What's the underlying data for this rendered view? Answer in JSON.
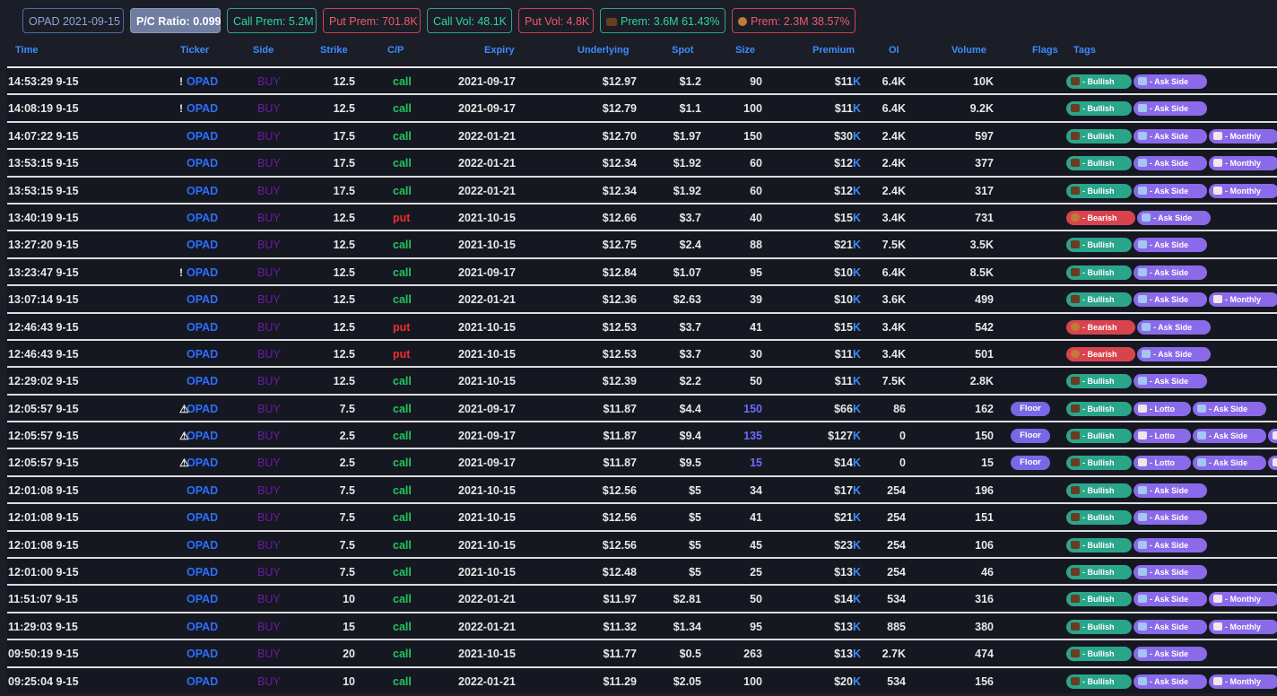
{
  "topbar": {
    "date_chip": "OPAD 2021-09-15",
    "pc_ratio": "P/C Ratio: 0.099",
    "call_prem": "Call Prem: 5.2M",
    "put_prem": "Put Prem: 701.8K",
    "call_vol": "Call Vol: 48.1K",
    "put_vol": "Put Vol: 4.8K",
    "bull_prem": "Prem: 3.6M 61.43%",
    "bear_prem": "Prem: 2.3M 38.57%",
    "colors": {
      "green": "#2ed6a1",
      "red": "#ef5969",
      "accent": "#3d8bff"
    }
  },
  "columns": [
    "Time",
    "Ticker",
    "Side",
    "Strike",
    "C/P",
    "Expiry",
    "Underlying",
    "Spot",
    "Size",
    "Premium",
    "OI",
    "Volume",
    "Flags",
    "Tags"
  ],
  "tag_labels": {
    "bullish": "- Bullish",
    "bearish": "- Bearish",
    "ask": "- Ask Side",
    "monthly": "- Monthly",
    "lotto": "- Lotto"
  },
  "rows": [
    {
      "time": "14:53:29 9-15",
      "marker": "!",
      "ticker": "OPAD",
      "side": "BUY",
      "strike": "12.5",
      "cp": "call",
      "expiry": "2021-09-17",
      "underlying": "$12.97",
      "spot": "$1.2",
      "size": "90",
      "premium": "$11",
      "unit": "K",
      "oi": "6.4K",
      "volume": "10K",
      "flag": "",
      "tags": [
        "bullish",
        "ask"
      ]
    },
    {
      "time": "14:08:19 9-15",
      "marker": "!",
      "ticker": "OPAD",
      "side": "BUY",
      "strike": "12.5",
      "cp": "call",
      "expiry": "2021-09-17",
      "underlying": "$12.79",
      "spot": "$1.1",
      "size": "100",
      "premium": "$11",
      "unit": "K",
      "oi": "6.4K",
      "volume": "9.2K",
      "flag": "",
      "tags": [
        "bullish",
        "ask"
      ]
    },
    {
      "time": "14:07:22 9-15",
      "marker": "",
      "ticker": "OPAD",
      "side": "BUY",
      "strike": "17.5",
      "cp": "call",
      "expiry": "2022-01-21",
      "underlying": "$12.70",
      "spot": "$1.97",
      "size": "150",
      "premium": "$30",
      "unit": "K",
      "oi": "2.4K",
      "volume": "597",
      "flag": "",
      "tags": [
        "bullish",
        "ask",
        "monthly"
      ]
    },
    {
      "time": "13:53:15 9-15",
      "marker": "",
      "ticker": "OPAD",
      "side": "BUY",
      "strike": "17.5",
      "cp": "call",
      "expiry": "2022-01-21",
      "underlying": "$12.34",
      "spot": "$1.92",
      "size": "60",
      "premium": "$12",
      "unit": "K",
      "oi": "2.4K",
      "volume": "377",
      "flag": "",
      "tags": [
        "bullish",
        "ask",
        "monthly"
      ]
    },
    {
      "time": "13:53:15 9-15",
      "marker": "",
      "ticker": "OPAD",
      "side": "BUY",
      "strike": "17.5",
      "cp": "call",
      "expiry": "2022-01-21",
      "underlying": "$12.34",
      "spot": "$1.92",
      "size": "60",
      "premium": "$12",
      "unit": "K",
      "oi": "2.4K",
      "volume": "317",
      "flag": "",
      "tags": [
        "bullish",
        "ask",
        "monthly"
      ]
    },
    {
      "time": "13:40:19 9-15",
      "marker": "",
      "ticker": "OPAD",
      "side": "BUY",
      "strike": "12.5",
      "cp": "put",
      "expiry": "2021-10-15",
      "underlying": "$12.66",
      "spot": "$3.7",
      "size": "40",
      "premium": "$15",
      "unit": "K",
      "oi": "3.4K",
      "volume": "731",
      "flag": "",
      "tags": [
        "bearish",
        "ask"
      ]
    },
    {
      "time": "13:27:20 9-15",
      "marker": "",
      "ticker": "OPAD",
      "side": "BUY",
      "strike": "12.5",
      "cp": "call",
      "expiry": "2021-10-15",
      "underlying": "$12.75",
      "spot": "$2.4",
      "size": "88",
      "premium": "$21",
      "unit": "K",
      "oi": "7.5K",
      "volume": "3.5K",
      "flag": "",
      "tags": [
        "bullish",
        "ask"
      ]
    },
    {
      "time": "13:23:47 9-15",
      "marker": "!",
      "ticker": "OPAD",
      "side": "BUY",
      "strike": "12.5",
      "cp": "call",
      "expiry": "2021-09-17",
      "underlying": "$12.84",
      "spot": "$1.07",
      "size": "95",
      "premium": "$10",
      "unit": "K",
      "oi": "6.4K",
      "volume": "8.5K",
      "flag": "",
      "tags": [
        "bullish",
        "ask"
      ]
    },
    {
      "time": "13:07:14 9-15",
      "marker": "",
      "ticker": "OPAD",
      "side": "BUY",
      "strike": "12.5",
      "cp": "call",
      "expiry": "2022-01-21",
      "underlying": "$12.36",
      "spot": "$2.63",
      "size": "39",
      "premium": "$10",
      "unit": "K",
      "oi": "3.6K",
      "volume": "499",
      "flag": "",
      "tags": [
        "bullish",
        "ask",
        "monthly"
      ]
    },
    {
      "time": "12:46:43 9-15",
      "marker": "",
      "ticker": "OPAD",
      "side": "BUY",
      "strike": "12.5",
      "cp": "put",
      "expiry": "2021-10-15",
      "underlying": "$12.53",
      "spot": "$3.7",
      "size": "41",
      "premium": "$15",
      "unit": "K",
      "oi": "3.4K",
      "volume": "542",
      "flag": "",
      "tags": [
        "bearish",
        "ask"
      ]
    },
    {
      "time": "12:46:43 9-15",
      "marker": "",
      "ticker": "OPAD",
      "side": "BUY",
      "strike": "12.5",
      "cp": "put",
      "expiry": "2021-10-15",
      "underlying": "$12.53",
      "spot": "$3.7",
      "size": "30",
      "premium": "$11",
      "unit": "K",
      "oi": "3.4K",
      "volume": "501",
      "flag": "",
      "tags": [
        "bearish",
        "ask"
      ]
    },
    {
      "time": "12:29:02 9-15",
      "marker": "",
      "ticker": "OPAD",
      "side": "BUY",
      "strike": "12.5",
      "cp": "call",
      "expiry": "2021-10-15",
      "underlying": "$12.39",
      "spot": "$2.2",
      "size": "50",
      "premium": "$11",
      "unit": "K",
      "oi": "7.5K",
      "volume": "2.8K",
      "flag": "",
      "tags": [
        "bullish",
        "ask"
      ]
    },
    {
      "time": "12:05:57 9-15",
      "marker": "⚠",
      "ticker": "OPAD",
      "side": "BUY",
      "strike": "7.5",
      "cp": "call",
      "expiry": "2021-09-17",
      "underlying": "$11.87",
      "spot": "$4.4",
      "size": "150",
      "size_hi": true,
      "premium": "$66",
      "unit": "K",
      "oi": "86",
      "volume": "162",
      "flag": "Floor",
      "tags": [
        "bullish",
        "lotto",
        "ask"
      ]
    },
    {
      "time": "12:05:57 9-15",
      "marker": "⚠",
      "ticker": "OPAD",
      "side": "BUY",
      "strike": "2.5",
      "cp": "call",
      "expiry": "2021-09-17",
      "underlying": "$11.87",
      "spot": "$9.4",
      "size": "135",
      "size_hi": true,
      "premium": "$127",
      "unit": "K",
      "oi": "0",
      "volume": "150",
      "flag": "Floor",
      "tags": [
        "bullish",
        "lotto",
        "ask",
        "monthly"
      ]
    },
    {
      "time": "12:05:57 9-15",
      "marker": "⚠",
      "ticker": "OPAD",
      "side": "BUY",
      "strike": "2.5",
      "cp": "call",
      "expiry": "2021-09-17",
      "underlying": "$11.87",
      "spot": "$9.5",
      "size": "15",
      "size_hi": true,
      "premium": "$14",
      "unit": "K",
      "oi": "0",
      "volume": "15",
      "flag": "Floor",
      "tags": [
        "bullish",
        "lotto",
        "ask",
        "monthly"
      ]
    },
    {
      "time": "12:01:08 9-15",
      "marker": "",
      "ticker": "OPAD",
      "side": "BUY",
      "strike": "7.5",
      "cp": "call",
      "expiry": "2021-10-15",
      "underlying": "$12.56",
      "spot": "$5",
      "size": "34",
      "premium": "$17",
      "unit": "K",
      "oi": "254",
      "volume": "196",
      "flag": "",
      "tags": [
        "bullish",
        "ask"
      ]
    },
    {
      "time": "12:01:08 9-15",
      "marker": "",
      "ticker": "OPAD",
      "side": "BUY",
      "strike": "7.5",
      "cp": "call",
      "expiry": "2021-10-15",
      "underlying": "$12.56",
      "spot": "$5",
      "size": "41",
      "premium": "$21",
      "unit": "K",
      "oi": "254",
      "volume": "151",
      "flag": "",
      "tags": [
        "bullish",
        "ask"
      ]
    },
    {
      "time": "12:01:08 9-15",
      "marker": "",
      "ticker": "OPAD",
      "side": "BUY",
      "strike": "7.5",
      "cp": "call",
      "expiry": "2021-10-15",
      "underlying": "$12.56",
      "spot": "$5",
      "size": "45",
      "premium": "$23",
      "unit": "K",
      "oi": "254",
      "volume": "106",
      "flag": "",
      "tags": [
        "bullish",
        "ask"
      ]
    },
    {
      "time": "12:01:00 9-15",
      "marker": "",
      "ticker": "OPAD",
      "side": "BUY",
      "strike": "7.5",
      "cp": "call",
      "expiry": "2021-10-15",
      "underlying": "$12.48",
      "spot": "$5",
      "size": "25",
      "premium": "$13",
      "unit": "K",
      "oi": "254",
      "volume": "46",
      "flag": "",
      "tags": [
        "bullish",
        "ask"
      ]
    },
    {
      "time": "11:51:07 9-15",
      "marker": "",
      "ticker": "OPAD",
      "side": "BUY",
      "strike": "10",
      "cp": "call",
      "expiry": "2022-01-21",
      "underlying": "$11.97",
      "spot": "$2.81",
      "size": "50",
      "premium": "$14",
      "unit": "K",
      "oi": "534",
      "volume": "316",
      "flag": "",
      "tags": [
        "bullish",
        "ask",
        "monthly"
      ]
    },
    {
      "time": "11:29:03 9-15",
      "marker": "",
      "ticker": "OPAD",
      "side": "BUY",
      "strike": "15",
      "cp": "call",
      "expiry": "2022-01-21",
      "underlying": "$11.32",
      "spot": "$1.34",
      "size": "95",
      "premium": "$13",
      "unit": "K",
      "oi": "885",
      "volume": "380",
      "flag": "",
      "tags": [
        "bullish",
        "ask",
        "monthly"
      ]
    },
    {
      "time": "09:50:19 9-15",
      "marker": "",
      "ticker": "OPAD",
      "side": "BUY",
      "strike": "20",
      "cp": "call",
      "expiry": "2021-10-15",
      "underlying": "$11.77",
      "spot": "$0.5",
      "size": "263",
      "premium": "$13",
      "unit": "K",
      "oi": "2.7K",
      "volume": "474",
      "flag": "",
      "tags": [
        "bullish",
        "ask"
      ]
    },
    {
      "time": "09:25:04 9-15",
      "marker": "",
      "ticker": "OPAD",
      "side": "BUY",
      "strike": "10",
      "cp": "call",
      "expiry": "2022-01-21",
      "underlying": "$11.29",
      "spot": "$2.05",
      "size": "100",
      "premium": "$20",
      "unit": "K",
      "oi": "534",
      "volume": "156",
      "flag": "",
      "tags": [
        "bullish",
        "ask",
        "monthly"
      ]
    }
  ]
}
